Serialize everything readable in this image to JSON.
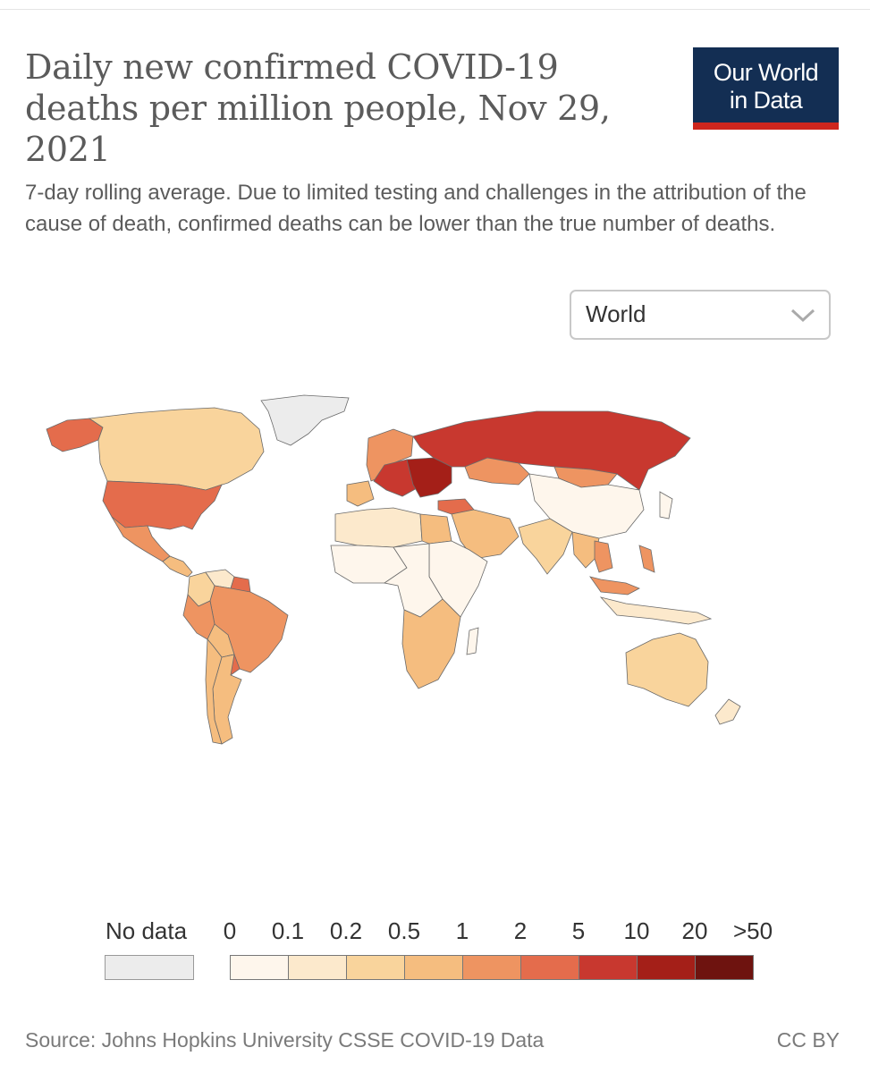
{
  "title": "Daily new confirmed COVID-19 deaths per million people, Nov 29, 2021",
  "subtitle": "7-day rolling average. Due to limited testing and challenges in the attribution of the cause of death, confirmed deaths can be lower than the true number of deaths.",
  "logo_text": "Our World\nin Data",
  "region_selector": {
    "value": "World"
  },
  "legend": {
    "no_data_label": "No data",
    "thresholds": [
      "0",
      "0.1",
      "0.2",
      "0.5",
      "1",
      "2",
      "5",
      "10",
      "20",
      ">50"
    ],
    "colors": [
      "#fef6ec",
      "#fce9cc",
      "#f9d49c",
      "#f5bd7f",
      "#ee9461",
      "#e46c4c",
      "#c8382f",
      "#a41f18",
      "#6e130f"
    ],
    "no_data_color": "#ececec"
  },
  "source": "Source: Johns Hopkins University CSSE COVID-19 Data",
  "license": "CC BY",
  "map_data": {
    "regions": [
      {
        "name": "Greenland",
        "bin": -1
      },
      {
        "name": "Canada",
        "bin": 2
      },
      {
        "name": "Alaska",
        "bin": 5
      },
      {
        "name": "United States",
        "bin": 5
      },
      {
        "name": "Mexico",
        "bin": 4
      },
      {
        "name": "Central America",
        "bin": 3
      },
      {
        "name": "Colombia",
        "bin": 2
      },
      {
        "name": "Venezuela",
        "bin": 1
      },
      {
        "name": "Guyana",
        "bin": 5
      },
      {
        "name": "Brazil",
        "bin": 4
      },
      {
        "name": "Peru",
        "bin": 4
      },
      {
        "name": "Bolivia",
        "bin": 3
      },
      {
        "name": "Paraguay",
        "bin": 5
      },
      {
        "name": "Argentina",
        "bin": 3
      },
      {
        "name": "Chile",
        "bin": 3
      },
      {
        "name": "Western Europe",
        "bin": 4
      },
      {
        "name": "Iberia",
        "bin": 3
      },
      {
        "name": "Central Europe",
        "bin": 6
      },
      {
        "name": "Eastern Europe",
        "bin": 7
      },
      {
        "name": "Russia",
        "bin": 6
      },
      {
        "name": "Kazakhstan",
        "bin": 4
      },
      {
        "name": "Turkey",
        "bin": 5
      },
      {
        "name": "Middle East",
        "bin": 3
      },
      {
        "name": "North Africa",
        "bin": 1
      },
      {
        "name": "Egypt",
        "bin": 3
      },
      {
        "name": "West Africa",
        "bin": 0
      },
      {
        "name": "Central Africa",
        "bin": 0
      },
      {
        "name": "East Africa",
        "bin": 0
      },
      {
        "name": "Southern Africa",
        "bin": 3
      },
      {
        "name": "India",
        "bin": 2
      },
      {
        "name": "China",
        "bin": 0
      },
      {
        "name": "Mongolia",
        "bin": 4
      },
      {
        "name": "Southeast Asia",
        "bin": 3
      },
      {
        "name": "Vietnam",
        "bin": 4
      },
      {
        "name": "Philippines",
        "bin": 4
      },
      {
        "name": "Malaysia",
        "bin": 4
      },
      {
        "name": "Indonesia",
        "bin": 1
      },
      {
        "name": "Japan",
        "bin": 0
      },
      {
        "name": "Australia",
        "bin": 2
      },
      {
        "name": "New Zealand",
        "bin": 1
      }
    ]
  }
}
